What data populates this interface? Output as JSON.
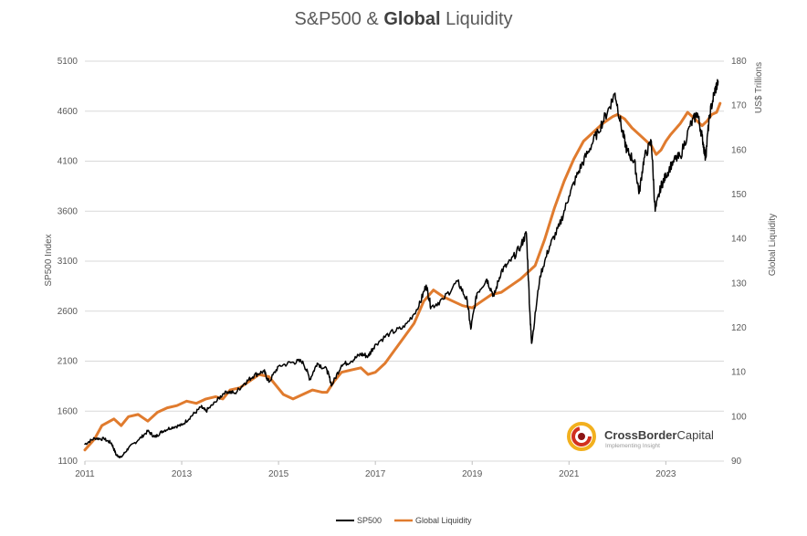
{
  "title": {
    "part1": "S&P500 & ",
    "bold": "Global",
    "part2": " Liquidity"
  },
  "chart_data": {
    "type": "line",
    "title": "S&P500 & Global Liquidity",
    "xlabel": "",
    "ylabel_left": "SP500 Index",
    "ylabel_right_top": "US$ Trillions",
    "ylabel_right": "Global Liquidity",
    "xlim": [
      2011,
      2024.2
    ],
    "ylim_left": [
      1100,
      5100
    ],
    "ylim_right": [
      90,
      180
    ],
    "x_ticks": [
      "2011",
      "2013",
      "2015",
      "2017",
      "2019",
      "2021",
      "2023"
    ],
    "x_tick_values": [
      2011,
      2013,
      2015,
      2017,
      2019,
      2021,
      2023
    ],
    "y_left_ticks": [
      1100,
      1600,
      2100,
      2600,
      3100,
      3600,
      4100,
      4600,
      5100
    ],
    "y_right_ticks": [
      90,
      100,
      110,
      120,
      130,
      140,
      150,
      160,
      170,
      180
    ],
    "grid": true,
    "legend_position": "bottom",
    "series": [
      {
        "name": "SP500",
        "axis": "left",
        "color": "#000000",
        "points": [
          [
            2011.0,
            1270
          ],
          [
            2011.2,
            1330
          ],
          [
            2011.4,
            1320
          ],
          [
            2011.55,
            1280
          ],
          [
            2011.65,
            1160
          ],
          [
            2011.75,
            1140
          ],
          [
            2011.9,
            1230
          ],
          [
            2012.1,
            1310
          ],
          [
            2012.3,
            1400
          ],
          [
            2012.45,
            1340
          ],
          [
            2012.6,
            1400
          ],
          [
            2012.8,
            1440
          ],
          [
            2013.0,
            1460
          ],
          [
            2013.2,
            1550
          ],
          [
            2013.4,
            1640
          ],
          [
            2013.5,
            1600
          ],
          [
            2013.7,
            1690
          ],
          [
            2013.9,
            1800
          ],
          [
            2014.1,
            1780
          ],
          [
            2014.3,
            1880
          ],
          [
            2014.5,
            1960
          ],
          [
            2014.7,
            2000
          ],
          [
            2014.8,
            1890
          ],
          [
            2015.0,
            2050
          ],
          [
            2015.3,
            2090
          ],
          [
            2015.5,
            2100
          ],
          [
            2015.65,
            1920
          ],
          [
            2015.8,
            2080
          ],
          [
            2016.0,
            2010
          ],
          [
            2016.1,
            1860
          ],
          [
            2016.3,
            2060
          ],
          [
            2016.5,
            2100
          ],
          [
            2016.7,
            2170
          ],
          [
            2016.85,
            2150
          ],
          [
            2017.0,
            2270
          ],
          [
            2017.3,
            2380
          ],
          [
            2017.6,
            2440
          ],
          [
            2017.9,
            2650
          ],
          [
            2018.05,
            2860
          ],
          [
            2018.15,
            2640
          ],
          [
            2018.4,
            2720
          ],
          [
            2018.7,
            2900
          ],
          [
            2018.9,
            2700
          ],
          [
            2018.97,
            2420
          ],
          [
            2019.1,
            2780
          ],
          [
            2019.3,
            2920
          ],
          [
            2019.45,
            2750
          ],
          [
            2019.6,
            3000
          ],
          [
            2019.8,
            3100
          ],
          [
            2020.0,
            3250
          ],
          [
            2020.12,
            3380
          ],
          [
            2020.2,
            2500
          ],
          [
            2020.23,
            2280
          ],
          [
            2020.4,
            2950
          ],
          [
            2020.6,
            3250
          ],
          [
            2020.8,
            3450
          ],
          [
            2021.0,
            3750
          ],
          [
            2021.2,
            4000
          ],
          [
            2021.4,
            4200
          ],
          [
            2021.6,
            4400
          ],
          [
            2021.8,
            4600
          ],
          [
            2021.95,
            4780
          ],
          [
            2022.1,
            4400
          ],
          [
            2022.2,
            4200
          ],
          [
            2022.35,
            4100
          ],
          [
            2022.45,
            3780
          ],
          [
            2022.55,
            4130
          ],
          [
            2022.7,
            4300
          ],
          [
            2022.78,
            3600
          ],
          [
            2022.9,
            3850
          ],
          [
            2023.0,
            3950
          ],
          [
            2023.15,
            4100
          ],
          [
            2023.3,
            4150
          ],
          [
            2023.5,
            4450
          ],
          [
            2023.65,
            4580
          ],
          [
            2023.75,
            4350
          ],
          [
            2023.82,
            4130
          ],
          [
            2023.9,
            4550
          ],
          [
            2024.0,
            4780
          ],
          [
            2024.08,
            4900
          ]
        ]
      },
      {
        "name": "Global Liquidity",
        "axis": "right",
        "color": "#E07B2E",
        "points": [
          [
            2011.0,
            92.5
          ],
          [
            2011.2,
            95
          ],
          [
            2011.35,
            98
          ],
          [
            2011.6,
            99.5
          ],
          [
            2011.75,
            98
          ],
          [
            2011.9,
            100
          ],
          [
            2012.1,
            100.5
          ],
          [
            2012.3,
            99
          ],
          [
            2012.5,
            101
          ],
          [
            2012.7,
            102
          ],
          [
            2012.9,
            102.5
          ],
          [
            2013.1,
            103.5
          ],
          [
            2013.3,
            103
          ],
          [
            2013.5,
            104
          ],
          [
            2013.7,
            104.5
          ],
          [
            2013.85,
            104
          ],
          [
            2014.0,
            106
          ],
          [
            2014.2,
            106.5
          ],
          [
            2014.4,
            108
          ],
          [
            2014.6,
            109.5
          ],
          [
            2014.8,
            109
          ],
          [
            2014.95,
            107
          ],
          [
            2015.1,
            105
          ],
          [
            2015.3,
            104
          ],
          [
            2015.5,
            105
          ],
          [
            2015.7,
            106
          ],
          [
            2015.9,
            105.5
          ],
          [
            2016.0,
            105.5
          ],
          [
            2016.15,
            108
          ],
          [
            2016.3,
            110
          ],
          [
            2016.5,
            110.5
          ],
          [
            2016.7,
            111
          ],
          [
            2016.85,
            109.5
          ],
          [
            2017.0,
            110
          ],
          [
            2017.2,
            112
          ],
          [
            2017.4,
            115
          ],
          [
            2017.6,
            118
          ],
          [
            2017.8,
            121
          ],
          [
            2018.0,
            126
          ],
          [
            2018.2,
            128.5
          ],
          [
            2018.4,
            127
          ],
          [
            2018.6,
            126
          ],
          [
            2018.8,
            125
          ],
          [
            2019.0,
            124.5
          ],
          [
            2019.2,
            126
          ],
          [
            2019.4,
            127.5
          ],
          [
            2019.6,
            128
          ],
          [
            2019.8,
            129.5
          ],
          [
            2020.0,
            131
          ],
          [
            2020.1,
            132
          ],
          [
            2020.3,
            134
          ],
          [
            2020.5,
            140
          ],
          [
            2020.7,
            147
          ],
          [
            2020.9,
            153
          ],
          [
            2021.1,
            158
          ],
          [
            2021.3,
            162
          ],
          [
            2021.5,
            164
          ],
          [
            2021.7,
            166
          ],
          [
            2021.9,
            167.5
          ],
          [
            2022.0,
            168
          ],
          [
            2022.15,
            167
          ],
          [
            2022.3,
            165
          ],
          [
            2022.5,
            163
          ],
          [
            2022.7,
            161
          ],
          [
            2022.8,
            159
          ],
          [
            2022.9,
            160
          ],
          [
            2023.0,
            162
          ],
          [
            2023.1,
            163.5
          ],
          [
            2023.3,
            166
          ],
          [
            2023.45,
            168.5
          ],
          [
            2023.6,
            167
          ],
          [
            2023.75,
            165.5
          ],
          [
            2023.85,
            166.5
          ],
          [
            2023.95,
            168
          ],
          [
            2024.05,
            168.5
          ],
          [
            2024.12,
            170.5
          ]
        ]
      }
    ]
  },
  "legend": {
    "sp500": "SP500",
    "liquidity": "Global Liquidity"
  },
  "logo": {
    "brand_part1": "CrossBorder",
    "brand_part2": "Capital",
    "tagline": "Implementing Insight"
  }
}
